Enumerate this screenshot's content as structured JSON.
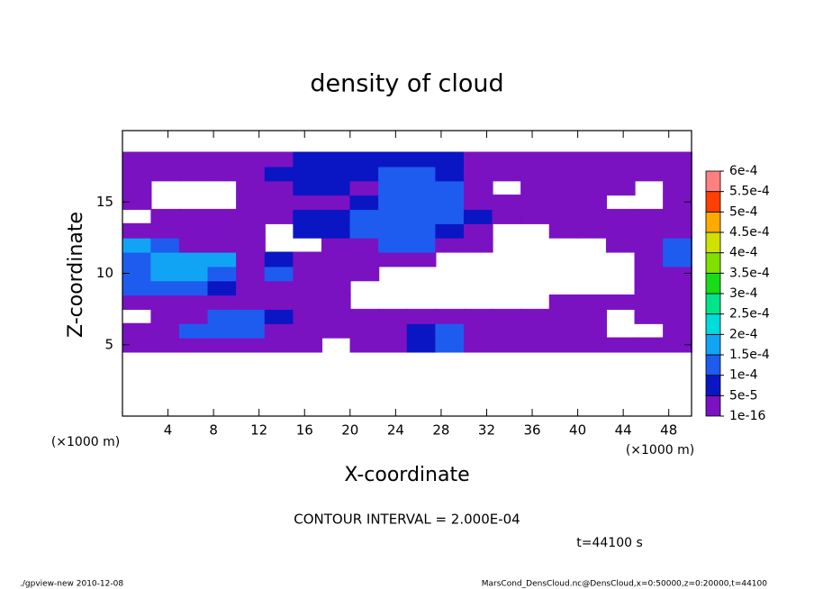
{
  "chart_data": {
    "type": "contour",
    "title": "density of cloud",
    "x_label": "X-coordinate",
    "y_label": "Z-coordinate",
    "x_unit": "(×1000 m)",
    "y_unit": "(×1000 m)",
    "contour_interval": "CONTOUR INTERVAL = 2.000E-04",
    "time": "t=44100 s",
    "footer_left": "./gpview-new  2010-12-08",
    "footer_right": "MarsCond_DensCloud.nc@DensCloud,x=0:50000,z=0:20000,t=44100",
    "xlim": [
      0,
      50
    ],
    "ylim": [
      0,
      20
    ],
    "xticks": [
      4,
      8,
      12,
      16,
      20,
      24,
      28,
      32,
      36,
      40,
      44,
      48
    ],
    "yticks": [
      5,
      10,
      15
    ],
    "cell_width": 2.5,
    "cell_height": 1,
    "x": [
      1.25,
      3.75,
      6.25,
      8.75,
      11.25,
      13.75,
      16.25,
      18.75,
      21.25,
      23.75,
      26.25,
      28.75,
      31.25,
      33.75,
      36.25,
      38.75,
      41.25,
      43.75,
      46.25,
      48.75
    ],
    "z": [
      5,
      6,
      7,
      8,
      9,
      10,
      11,
      12,
      13,
      14,
      15,
      16,
      17,
      18
    ],
    "values": [
      [
        2e-05,
        2e-05,
        2e-05,
        2e-05,
        2e-05,
        2e-05,
        2e-05,
        null,
        2e-05,
        2e-05,
        7e-05,
        0.00012,
        2e-05,
        2e-05,
        2e-05,
        2e-05,
        2e-05,
        2e-05,
        2e-05,
        2e-05
      ],
      [
        2e-05,
        2e-05,
        0.00012,
        0.00012,
        0.00012,
        2e-05,
        2e-05,
        2e-05,
        2e-05,
        2e-05,
        7e-05,
        0.00012,
        2e-05,
        2e-05,
        2e-05,
        2e-05,
        2e-05,
        null,
        null,
        2e-05
      ],
      [
        null,
        2e-05,
        2e-05,
        0.00012,
        0.00012,
        7e-05,
        2e-05,
        2e-05,
        2e-05,
        2e-05,
        2e-05,
        2e-05,
        2e-05,
        2e-05,
        2e-05,
        2e-05,
        2e-05,
        null,
        2e-05,
        2e-05
      ],
      [
        2e-05,
        2e-05,
        2e-05,
        2e-05,
        2e-05,
        2e-05,
        2e-05,
        2e-05,
        null,
        null,
        null,
        null,
        null,
        null,
        null,
        2e-05,
        2e-05,
        2e-05,
        2e-05,
        2e-05
      ],
      [
        0.00012,
        0.00012,
        0.00012,
        7e-05,
        2e-05,
        2e-05,
        2e-05,
        2e-05,
        null,
        null,
        null,
        null,
        null,
        null,
        null,
        null,
        null,
        null,
        2e-05,
        2e-05
      ],
      [
        0.00012,
        0.00017,
        0.00017,
        0.00012,
        2e-05,
        0.00012,
        2e-05,
        2e-05,
        2e-05,
        null,
        null,
        null,
        null,
        null,
        null,
        null,
        null,
        null,
        2e-05,
        2e-05
      ],
      [
        0.00012,
        0.00017,
        0.00017,
        0.00017,
        2e-05,
        7e-05,
        2e-05,
        2e-05,
        2e-05,
        2e-05,
        2e-05,
        null,
        null,
        null,
        null,
        null,
        null,
        null,
        2e-05,
        0.00012
      ],
      [
        0.00017,
        0.00012,
        2e-05,
        2e-05,
        2e-05,
        null,
        null,
        2e-05,
        2e-05,
        0.00012,
        0.00012,
        2e-05,
        2e-05,
        null,
        null,
        null,
        null,
        2e-05,
        2e-05,
        0.00012
      ],
      [
        2e-05,
        2e-05,
        2e-05,
        2e-05,
        2e-05,
        null,
        7e-05,
        7e-05,
        0.00012,
        0.00012,
        0.00012,
        7e-05,
        2e-05,
        null,
        null,
        2e-05,
        2e-05,
        2e-05,
        2e-05,
        2e-05
      ],
      [
        null,
        2e-05,
        2e-05,
        2e-05,
        2e-05,
        2e-05,
        7e-05,
        7e-05,
        0.00012,
        0.00012,
        0.00012,
        0.00012,
        7e-05,
        2e-05,
        2e-05,
        2e-05,
        2e-05,
        2e-05,
        2e-05,
        2e-05
      ],
      [
        2e-05,
        null,
        null,
        null,
        2e-05,
        2e-05,
        2e-05,
        2e-05,
        7e-05,
        0.00012,
        0.00012,
        0.00012,
        2e-05,
        2e-05,
        2e-05,
        2e-05,
        2e-05,
        null,
        null,
        2e-05
      ],
      [
        2e-05,
        null,
        null,
        null,
        2e-05,
        2e-05,
        7e-05,
        7e-05,
        2e-05,
        0.00012,
        0.00012,
        0.00012,
        2e-05,
        null,
        2e-05,
        2e-05,
        2e-05,
        2e-05,
        null,
        2e-05
      ],
      [
        2e-05,
        2e-05,
        2e-05,
        2e-05,
        2e-05,
        7e-05,
        7e-05,
        7e-05,
        7e-05,
        0.00012,
        0.00012,
        7e-05,
        2e-05,
        2e-05,
        2e-05,
        2e-05,
        2e-05,
        2e-05,
        2e-05,
        2e-05
      ],
      [
        2e-05,
        2e-05,
        2e-05,
        2e-05,
        2e-05,
        2e-05,
        7e-05,
        7e-05,
        7e-05,
        7e-05,
        7e-05,
        7e-05,
        2e-05,
        2e-05,
        2e-05,
        2e-05,
        2e-05,
        2e-05,
        2e-05,
        2e-05
      ]
    ],
    "levels": [
      {
        "value": 1e-16,
        "label": "1e-16"
      },
      {
        "value": 5e-05,
        "label": "5e-5"
      },
      {
        "value": 0.0001,
        "label": "1e-4"
      },
      {
        "value": 0.00015,
        "label": "1.5e-4"
      },
      {
        "value": 0.0002,
        "label": "2e-4"
      },
      {
        "value": 0.00025,
        "label": "2.5e-4"
      },
      {
        "value": 0.0003,
        "label": "3e-4"
      },
      {
        "value": 0.00035,
        "label": "3.5e-4"
      },
      {
        "value": 0.0004,
        "label": "4e-4"
      },
      {
        "value": 0.00045,
        "label": "4.5e-4"
      },
      {
        "value": 0.0005,
        "label": "5e-4"
      },
      {
        "value": 0.00055,
        "label": "5.5e-4"
      },
      {
        "value": 0.0006,
        "label": "6e-4"
      }
    ],
    "level_colors": [
      "#7a12c2",
      "#0a16c4",
      "#1e5cf0",
      "#12a4f4",
      "#00dcdc",
      "#00e48a",
      "#18dc18",
      "#80e000",
      "#d0e000",
      "#ffaa00",
      "#ff4000",
      "#ff8080"
    ]
  }
}
